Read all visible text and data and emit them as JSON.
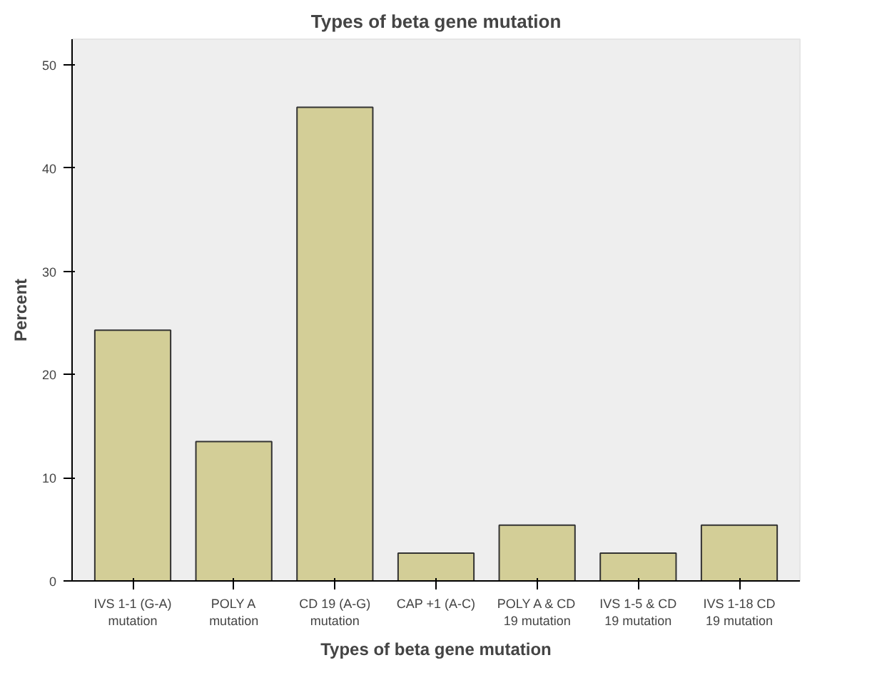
{
  "chart_data": {
    "type": "bar",
    "title": "Types of beta gene mutation",
    "xlabel": "Types of beta gene mutation",
    "ylabel": "Percent",
    "categories": [
      "IVS 1-1 (G-A)\nmutation",
      "POLY A\nmutation",
      "CD 19 (A-G)\nmutation",
      "CAP +1 (A-C)",
      "POLY A & CD\n19 mutation",
      "IVS 1-5 & CD\n19 mutation",
      "IVS 1-18 CD\n19 mutation"
    ],
    "values": [
      24.3,
      13.5,
      45.9,
      2.7,
      5.4,
      2.7,
      5.4
    ],
    "color": "#d3ce97",
    "ylim": [
      0,
      52.5
    ],
    "yticks": [
      0,
      10,
      20,
      30,
      40,
      50
    ],
    "grid": false
  }
}
